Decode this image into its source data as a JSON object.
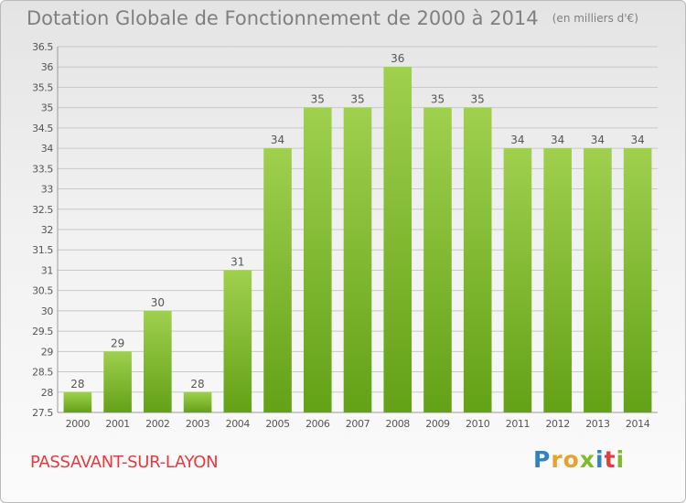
{
  "title": {
    "main": "Dotation Globale de Fonctionnement de 2000 à 2014",
    "unit": "(en milliers d'€)"
  },
  "commune": "PASSAVANT-SUR-LAYON",
  "logo": {
    "text": "Proxiti",
    "letter_colors": [
      "#2e83c7",
      "#e8a12b",
      "#e8a12b",
      "#7dbb2b",
      "#2e83c7",
      "#e8393d",
      "#7dbb2b"
    ]
  },
  "chart_data": {
    "type": "bar",
    "title": "Dotation Globale de Fonctionnement de 2000 à 2014",
    "subtitle": "(en milliers d'€)",
    "xlabel": "",
    "ylabel": "",
    "categories": [
      "2000",
      "2001",
      "2002",
      "2003",
      "2004",
      "2005",
      "2006",
      "2007",
      "2008",
      "2009",
      "2010",
      "2011",
      "2012",
      "2013",
      "2014"
    ],
    "values": [
      28,
      29,
      30,
      28,
      31,
      34,
      35,
      35,
      36,
      35,
      35,
      34,
      34,
      34,
      34
    ],
    "data_labels": [
      "28",
      "29",
      "30",
      "28",
      "31",
      "34",
      "35",
      "35",
      "36",
      "35",
      "35",
      "34",
      "34",
      "34",
      "34"
    ],
    "ylim": [
      27.5,
      36.5
    ],
    "yticks": [
      27.5,
      28,
      28.5,
      29,
      29.5,
      30,
      30.5,
      31,
      31.5,
      32,
      32.5,
      33,
      33.5,
      34,
      34.5,
      35,
      35.5,
      36,
      36.5
    ],
    "ytick_labels": [
      "27.5",
      "28",
      "28.5",
      "29",
      "29.5",
      "30",
      "30.5",
      "31",
      "31.5",
      "32",
      "32.5",
      "33",
      "33.5",
      "34",
      "34.5",
      "35",
      "35.5",
      "36",
      "36.5"
    ],
    "grid": true,
    "legend": "none",
    "colors": {
      "bar_top": "#9fd04e",
      "bar_bottom": "#63a117",
      "grid": "#c8c8c8",
      "text": "#555555"
    }
  }
}
